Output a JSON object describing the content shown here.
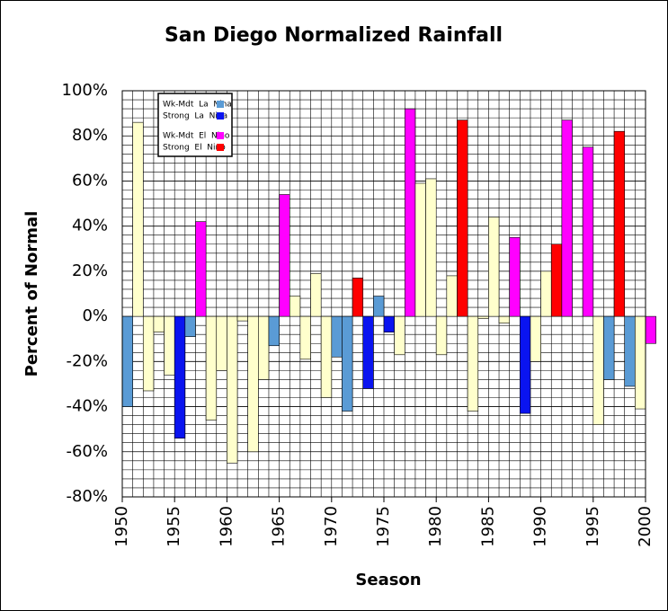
{
  "chart_data": {
    "type": "bar",
    "title": "San Diego Normalized Rainfall",
    "x_label": "Season",
    "y_label": "Percent of Normal",
    "x": [
      1950,
      1951,
      1952,
      1953,
      1954,
      1955,
      1956,
      1957,
      1958,
      1959,
      1960,
      1961,
      1962,
      1963,
      1964,
      1965,
      1966,
      1967,
      1968,
      1969,
      1970,
      1971,
      1972,
      1973,
      1974,
      1975,
      1976,
      1977,
      1978,
      1979,
      1980,
      1981,
      1982,
      1983,
      1984,
      1985,
      1986,
      1987,
      1988,
      1989,
      1990,
      1991,
      1992,
      1993,
      1994,
      1995,
      1996,
      1997,
      1998,
      1999,
      2000
    ],
    "values": [
      -40,
      86,
      -33,
      -7,
      -26,
      -54,
      -9,
      42,
      -46,
      -24,
      -65,
      -2,
      -60,
      -28,
      -13,
      54,
      9,
      -19,
      19,
      -36,
      -18,
      -42,
      17,
      -32,
      9,
      -7,
      -17,
      92,
      59,
      61,
      -17,
      18,
      87,
      -42,
      -1,
      44,
      -3,
      35,
      -43,
      -20,
      20,
      32,
      87,
      0,
      75,
      -48,
      -28,
      82,
      -31,
      -41,
      -12
    ],
    "colors": [
      "#5a9bd5",
      "#ffffcc",
      "#ffffcc",
      "#ffffcc",
      "#ffffcc",
      "#0a14f0",
      "#5a9bd5",
      "#ff00ff",
      "#ffffcc",
      "#ffffcc",
      "#ffffcc",
      "#ffffcc",
      "#ffffcc",
      "#ffffcc",
      "#5a9bd5",
      "#ff00ff",
      "#ffffcc",
      "#ffffcc",
      "#ffffcc",
      "#ffffcc",
      "#5a9bd5",
      "#5a9bd5",
      "#ff0000",
      "#0a14f0",
      "#5a9bd5",
      "#0a14f0",
      "#ffffcc",
      "#ff00ff",
      "#ffffcc",
      "#ffffcc",
      "#ffffcc",
      "#ffffcc",
      "#ff0000",
      "#ffffcc",
      "#ffffcc",
      "#ffffcc",
      "#ffffcc",
      "#ff00ff",
      "#0a14f0",
      "#ffffcc",
      "#ffffcc",
      "#ff0000",
      "#ff00ff",
      "#ffffcc",
      "#ff00ff",
      "#ffffcc",
      "#5a9bd5",
      "#ff0000",
      "#5a9bd5",
      "#ffffcc",
      "#ff00ff"
    ],
    "legend": [
      {
        "name": "Wk-Mdt  La  Nina",
        "color": "#5a9bd5"
      },
      {
        "name": "Strong  La  Nina",
        "color": "#0a14f0"
      },
      {
        "name": "Wk-Mdt  El  Nino",
        "color": "#ff00ff"
      },
      {
        "name": "Strong  El  Nino",
        "color": "#ff0000"
      }
    ],
    "xlim": [
      1950,
      2000
    ],
    "xticks": [
      1950,
      1955,
      1960,
      1965,
      1970,
      1975,
      1980,
      1985,
      1990,
      1995,
      2000
    ],
    "ylim": [
      -80,
      100
    ],
    "yticks": [
      {
        "value": -80,
        "label": "-80%"
      },
      {
        "value": -60,
        "label": "-60%"
      },
      {
        "value": -40,
        "label": "-40%"
      },
      {
        "value": -20,
        "label": "-20%"
      },
      {
        "value": 0,
        "label": "0%"
      },
      {
        "value": 20,
        "label": "20%"
      },
      {
        "value": 40,
        "label": "40%"
      },
      {
        "value": 60,
        "label": "60%"
      },
      {
        "value": 80,
        "label": "80%"
      },
      {
        "value": 100,
        "label": "100%"
      }
    ],
    "grid": true
  }
}
